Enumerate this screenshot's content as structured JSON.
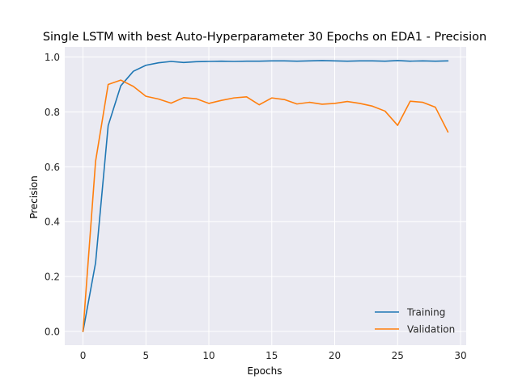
{
  "chart_data": {
    "type": "line",
    "title": "Single LSTM with best Auto-Hyperparameter 30 Epochs on EDA1 - Precision",
    "xlabel": "Epochs",
    "ylabel": "Precision",
    "xlim": [
      -1.45,
      30.45
    ],
    "ylim": [
      -0.05,
      1.037
    ],
    "xticks": [
      0,
      5,
      10,
      15,
      20,
      25,
      30
    ],
    "yticks": [
      0.0,
      0.2,
      0.4,
      0.6,
      0.8,
      1.0
    ],
    "xtick_labels": [
      "0",
      "5",
      "10",
      "15",
      "20",
      "25",
      "30"
    ],
    "ytick_labels": [
      "0.0",
      "0.2",
      "0.4",
      "0.6",
      "0.8",
      "1.0"
    ],
    "grid": true,
    "legend_position": "lower-right",
    "x": [
      0,
      1,
      2,
      3,
      4,
      5,
      6,
      7,
      8,
      9,
      10,
      11,
      12,
      13,
      14,
      15,
      16,
      17,
      18,
      19,
      20,
      21,
      22,
      23,
      24,
      25,
      26,
      27,
      28,
      29
    ],
    "series": [
      {
        "name": "Training",
        "color": "#1f77b4",
        "values": [
          0.0,
          0.25,
          0.75,
          0.895,
          0.948,
          0.97,
          0.979,
          0.984,
          0.98,
          0.983,
          0.984,
          0.985,
          0.984,
          0.985,
          0.985,
          0.986,
          0.986,
          0.985,
          0.986,
          0.987,
          0.986,
          0.985,
          0.986,
          0.986,
          0.985,
          0.987,
          0.985,
          0.986,
          0.985,
          0.986
        ]
      },
      {
        "name": "Validation",
        "color": "#ff7f0e",
        "values": [
          0.0,
          0.62,
          0.9,
          0.916,
          0.893,
          0.857,
          0.847,
          0.832,
          0.852,
          0.848,
          0.831,
          0.842,
          0.851,
          0.855,
          0.826,
          0.851,
          0.845,
          0.829,
          0.835,
          0.828,
          0.831,
          0.838,
          0.831,
          0.821,
          0.803,
          0.751,
          0.839,
          0.835,
          0.817,
          0.727
        ]
      }
    ]
  }
}
